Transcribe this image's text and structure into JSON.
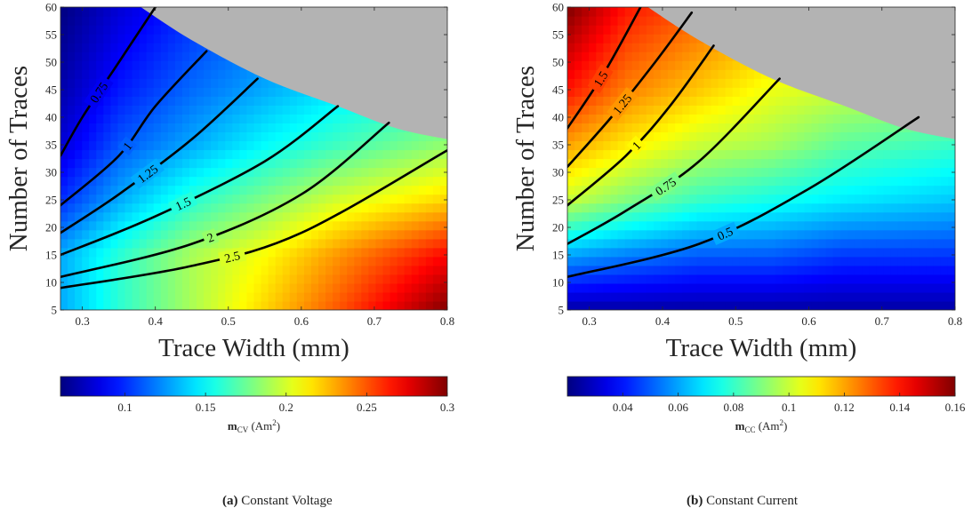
{
  "colors": {
    "unavailable_region": "#b3b3b3",
    "contour_line": "#000000",
    "colormap": "jet"
  },
  "chart_data": [
    {
      "type": "heatmap",
      "caption": {
        "label": "(a)",
        "text": "Constant Voltage"
      },
      "xlabel": "Trace Width (mm)",
      "ylabel": "Number of Traces",
      "xlim": [
        0.27,
        0.8
      ],
      "ylim": [
        5,
        60
      ],
      "x_ticks": [
        0.3,
        0.4,
        0.5,
        0.6,
        0.7,
        0.8
      ],
      "x_tick_labels": [
        "0.3",
        "0.4",
        "0.5",
        "0.6",
        "0.7",
        "0.8"
      ],
      "y_ticks": [
        5,
        10,
        15,
        20,
        25,
        30,
        35,
        40,
        45,
        50,
        55,
        60
      ],
      "y_tick_labels": [
        "5",
        "10",
        "15",
        "20",
        "25",
        "30",
        "35",
        "40",
        "45",
        "50",
        "55",
        "60"
      ],
      "colorbar": {
        "range": [
          0.06,
          0.3
        ],
        "ticks": [
          0.1,
          0.15,
          0.2,
          0.25,
          0.3
        ],
        "tick_labels": [
          "0.1",
          "0.15",
          "0.2",
          "0.25",
          "0.3"
        ],
        "label_main": "m",
        "label_sub": "CV",
        "label_unit_pre": " (Am",
        "label_unit_sup": "2",
        "label_unit_post": ")"
      },
      "unavailable_boundary": {
        "x": [
          0.38,
          0.45,
          0.55,
          0.65,
          0.73,
          0.8
        ],
        "y": [
          60,
          54,
          47,
          42,
          38,
          36
        ]
      },
      "color_field": {
        "x": [
          0.27,
          0.35,
          0.45,
          0.55,
          0.65,
          0.8
        ],
        "y": [
          5,
          15,
          25,
          35,
          45,
          60
        ],
        "z": [
          [
            0.13,
            0.16,
            0.19,
            0.22,
            0.25,
            0.3
          ],
          [
            0.13,
            0.16,
            0.19,
            0.21,
            0.235,
            0.27
          ],
          [
            0.1,
            0.13,
            0.16,
            0.18,
            0.2,
            0.22
          ],
          [
            0.08,
            0.11,
            0.13,
            0.15,
            0.165,
            0.185
          ],
          [
            0.07,
            0.095,
            0.115,
            0.13,
            0.145,
            0.16
          ],
          [
            0.06,
            0.08,
            0.1,
            0.115,
            0.125,
            0.14
          ]
        ]
      },
      "contours": [
        {
          "level": "0.75",
          "x": [
            0.27,
            0.3,
            0.35,
            0.4
          ],
          "y": [
            33,
            40,
            50,
            60
          ]
        },
        {
          "level": "1",
          "x": [
            0.27,
            0.35,
            0.4,
            0.47
          ],
          "y": [
            24,
            33,
            42,
            52
          ]
        },
        {
          "level": "1.25",
          "x": [
            0.27,
            0.35,
            0.45,
            0.54
          ],
          "y": [
            19,
            26,
            36,
            47
          ]
        },
        {
          "level": "1.5",
          "x": [
            0.27,
            0.4,
            0.55,
            0.65
          ],
          "y": [
            15,
            22,
            32,
            42
          ]
        },
        {
          "level": "2",
          "x": [
            0.27,
            0.45,
            0.6,
            0.72
          ],
          "y": [
            11,
            17,
            26,
            39
          ]
        },
        {
          "level": "2.5",
          "x": [
            0.27,
            0.45,
            0.6,
            0.8
          ],
          "y": [
            9,
            13,
            19,
            34
          ]
        }
      ]
    },
    {
      "type": "heatmap",
      "caption": {
        "label": "(b)",
        "text": "Constant Current"
      },
      "xlabel": "Trace Width (mm)",
      "ylabel": "Number of Traces",
      "xlim": [
        0.27,
        0.8
      ],
      "ylim": [
        5,
        60
      ],
      "x_ticks": [
        0.3,
        0.4,
        0.5,
        0.6,
        0.7,
        0.8
      ],
      "x_tick_labels": [
        "0.3",
        "0.4",
        "0.5",
        "0.6",
        "0.7",
        "0.8"
      ],
      "y_ticks": [
        5,
        10,
        15,
        20,
        25,
        30,
        35,
        40,
        45,
        50,
        55,
        60
      ],
      "y_tick_labels": [
        "5",
        "10",
        "15",
        "20",
        "25",
        "30",
        "35",
        "40",
        "45",
        "50",
        "55",
        "60"
      ],
      "colorbar": {
        "range": [
          0.02,
          0.16
        ],
        "ticks": [
          0.04,
          0.06,
          0.08,
          0.1,
          0.12,
          0.14,
          0.16
        ],
        "tick_labels": [
          "0.04",
          "0.06",
          "0.08",
          "0.1",
          "0.12",
          "0.14",
          "0.16"
        ],
        "label_main": "m",
        "label_sub": "CC",
        "label_unit_pre": " (Am",
        "label_unit_sup": "2",
        "label_unit_post": ")"
      },
      "unavailable_boundary": {
        "x": [
          0.38,
          0.45,
          0.55,
          0.65,
          0.73,
          0.8
        ],
        "y": [
          60,
          54,
          47,
          42,
          38,
          36
        ]
      },
      "color_field": {
        "x": [
          0.27,
          0.35,
          0.45,
          0.55,
          0.65,
          0.8
        ],
        "y": [
          5,
          15,
          25,
          35,
          45,
          60
        ],
        "z": [
          [
            0.025,
            0.025,
            0.025,
            0.025,
            0.025,
            0.025
          ],
          [
            0.06,
            0.055,
            0.05,
            0.05,
            0.045,
            0.045
          ],
          [
            0.1,
            0.09,
            0.08,
            0.075,
            0.07,
            0.065
          ],
          [
            0.12,
            0.11,
            0.1,
            0.095,
            0.085,
            0.08
          ],
          [
            0.14,
            0.125,
            0.115,
            0.105,
            0.1,
            0.095
          ],
          [
            0.16,
            0.14,
            0.13,
            0.12,
            0.11,
            0.1
          ]
        ]
      },
      "contours": [
        {
          "level": "1.5",
          "x": [
            0.27,
            0.32,
            0.37
          ],
          "y": [
            38,
            48,
            60
          ]
        },
        {
          "level": "1.25",
          "x": [
            0.27,
            0.33,
            0.39,
            0.44
          ],
          "y": [
            31,
            40,
            50,
            59
          ]
        },
        {
          "level": "1",
          "x": [
            0.27,
            0.35,
            0.41,
            0.47
          ],
          "y": [
            24,
            33,
            42,
            53
          ]
        },
        {
          "level": "0.75",
          "x": [
            0.27,
            0.35,
            0.45,
            0.56
          ],
          "y": [
            17,
            23,
            32,
            47
          ]
        },
        {
          "level": "0.5",
          "x": [
            0.27,
            0.45,
            0.6,
            0.75
          ],
          "y": [
            11,
            17,
            27,
            40
          ]
        }
      ]
    }
  ]
}
